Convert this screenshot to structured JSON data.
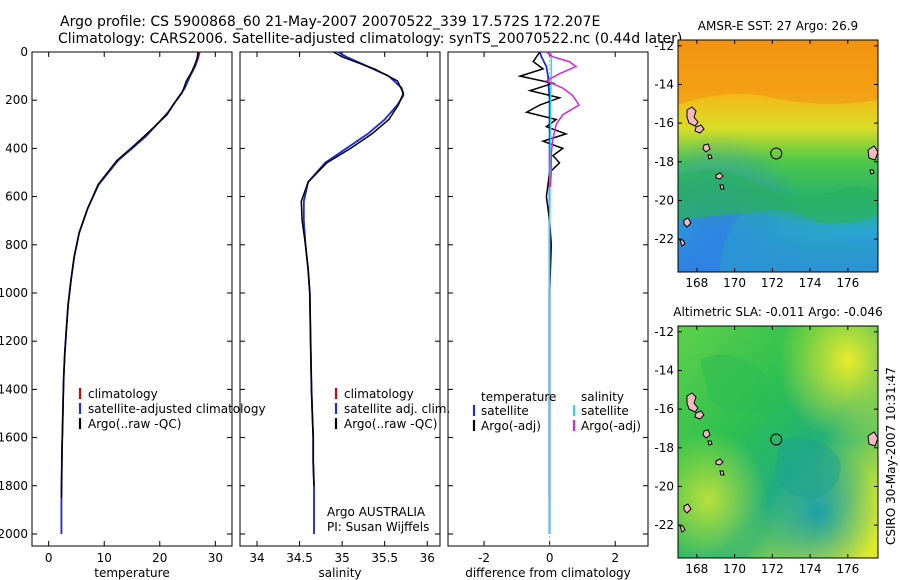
{
  "figure": {
    "title_line1": "Argo profile: CS 5900868_60 21-May-2007 20070522_339 17.572S 172.207E",
    "title_line2": "Climatology: CARS2006. Satellite-adjusted climatology: synTS_20070522.nc (0.44d later)",
    "credit": "CSIRO 30-May-2007 10:31:47"
  },
  "colors": {
    "climatology": "#dd0000",
    "satellite": "#1a2de8",
    "argo": "#000000",
    "sal_satellite": "#19e0ef",
    "sal_argo": "#e020e0"
  },
  "chart_data": [
    {
      "type": "line",
      "id": "temperature",
      "xlabel": "temperature",
      "ylabel": "",
      "xlim": [
        -3,
        33
      ],
      "ylim": [
        2050,
        0
      ],
      "xticks": [
        "0",
        "10",
        "20",
        "30"
      ],
      "yticks": [
        "0",
        "200",
        "400",
        "600",
        "800",
        "1000",
        "1200",
        "1400",
        "1600",
        "1800",
        "2000"
      ],
      "legend": [
        "climatology",
        "satellite-adjusted climatology",
        "Argo(..raw -QC)"
      ],
      "legend_position": "lower-center",
      "series": [
        {
          "name": "climatology",
          "color_key": "climatology",
          "x": [
            27.2,
            27.0,
            26.4,
            25.5,
            24.5,
            23.0,
            21.5,
            19.5,
            17.5,
            15.0,
            12.5,
            9.0,
            7.0,
            5.5,
            4.6,
            4.0,
            3.5,
            3.2,
            2.9,
            2.7,
            2.6,
            2.5,
            2.4,
            2.35,
            2.3,
            2.3
          ],
          "y": [
            0,
            20,
            60,
            100,
            150,
            200,
            250,
            300,
            350,
            400,
            450,
            550,
            650,
            750,
            850,
            950,
            1050,
            1150,
            1250,
            1350,
            1450,
            1550,
            1650,
            1750,
            1850,
            2000
          ]
        },
        {
          "name": "satellite-adjusted climatology",
          "color_key": "satellite",
          "x": [
            26.9,
            26.8,
            26.3,
            25.4,
            24.5,
            23.0,
            21.5,
            19.5,
            17.5,
            15.0,
            12.5,
            9.0,
            7.0,
            5.5,
            4.6,
            4.0,
            3.5,
            3.2,
            2.9,
            2.7,
            2.6,
            2.5,
            2.4,
            2.35,
            2.3,
            2.3
          ],
          "y": [
            0,
            20,
            60,
            100,
            150,
            200,
            250,
            300,
            350,
            400,
            450,
            550,
            650,
            750,
            850,
            950,
            1050,
            1150,
            1250,
            1350,
            1450,
            1550,
            1650,
            1750,
            1850,
            2000
          ]
        },
        {
          "name": "Argo(..raw -QC)",
          "color_key": "argo",
          "x": [
            26.9,
            26.7,
            25.8,
            24.8,
            24.0,
            22.7,
            21.3,
            19.5,
            17.2,
            14.8,
            12.3,
            8.9,
            7.0,
            5.5,
            4.6,
            4.0,
            3.5,
            3.2,
            2.9,
            2.7,
            2.6,
            2.5,
            2.4,
            2.35,
            2.3
          ],
          "y": [
            0,
            30,
            80,
            120,
            170,
            210,
            260,
            300,
            350,
            400,
            450,
            550,
            650,
            750,
            850,
            950,
            1050,
            1150,
            1250,
            1350,
            1450,
            1550,
            1650,
            1750,
            1850
          ]
        }
      ]
    },
    {
      "type": "line",
      "id": "salinity",
      "xlabel": "salinity",
      "ylabel": "",
      "xlim": [
        33.8,
        36.15
      ],
      "ylim": [
        2050,
        0
      ],
      "xticks": [
        "34",
        "34.5",
        "35",
        "35.5",
        "36"
      ],
      "legend": [
        "climatology",
        "satellite adj. clim.",
        "Argo(..raw -QC)"
      ],
      "legend_position": "lower-right",
      "annotation": [
        "Argo AUSTRALIA",
        "PI: Susan Wijffels"
      ],
      "series": [
        {
          "name": "climatology",
          "color_key": "climatology",
          "x": [
            34.95,
            35.05,
            35.3,
            35.55,
            35.7,
            35.72,
            35.65,
            35.5,
            35.3,
            35.05,
            34.8,
            34.6,
            34.55,
            34.55,
            34.57,
            34.6,
            34.62,
            34.63,
            34.64,
            34.65,
            34.66,
            34.66,
            34.67,
            34.67
          ],
          "y": [
            0,
            20,
            60,
            100,
            150,
            180,
            220,
            280,
            340,
            400,
            460,
            540,
            620,
            700,
            800,
            900,
            1000,
            1200,
            1400,
            1500,
            1600,
            1700,
            1800,
            2000
          ]
        },
        {
          "name": "satellite adj. clim.",
          "color_key": "satellite",
          "x": [
            34.95,
            35.05,
            35.3,
            35.55,
            35.7,
            35.72,
            35.65,
            35.5,
            35.3,
            35.05,
            34.8,
            34.6,
            34.55,
            34.55,
            34.57,
            34.6,
            34.62,
            34.63,
            34.64,
            34.65,
            34.66,
            34.66,
            34.67,
            34.67
          ],
          "y": [
            0,
            20,
            60,
            100,
            150,
            180,
            220,
            280,
            340,
            400,
            460,
            540,
            620,
            700,
            800,
            900,
            1000,
            1200,
            1400,
            1500,
            1600,
            1700,
            1800,
            2000
          ]
        },
        {
          "name": "Argo(..raw -QC)",
          "color_key": "argo",
          "x": [
            34.9,
            35.0,
            35.38,
            35.65,
            35.72,
            35.66,
            35.55,
            35.35,
            35.1,
            34.82,
            34.6,
            34.52,
            34.53,
            34.57,
            34.6,
            34.62,
            34.63,
            34.64,
            34.65,
            34.66,
            34.66,
            34.67
          ],
          "y": [
            0,
            20,
            70,
            120,
            170,
            220,
            280,
            340,
            400,
            460,
            540,
            620,
            700,
            800,
            900,
            1000,
            1200,
            1400,
            1500,
            1600,
            1700,
            1800
          ]
        }
      ]
    },
    {
      "type": "line",
      "id": "difference",
      "xlabel": "difference from climatology",
      "ylabel": "",
      "xlim": [
        -3.1,
        3.0
      ],
      "ylim": [
        2050,
        0
      ],
      "xticks": [
        "-2",
        "0",
        "2"
      ],
      "legend_left_title": "temperature",
      "legend_left": [
        "satellite",
        "Argo(-adj)"
      ],
      "legend_right_title": "salinity",
      "legend_right": [
        "satellite",
        "Argo(-adj)"
      ],
      "legend_position": "middle",
      "series": [
        {
          "name": "temperature satellite",
          "color_key": "satellite",
          "x": [
            -0.3,
            -0.25,
            -0.1,
            -0.05,
            0,
            0,
            0,
            0,
            0
          ],
          "y": [
            0,
            20,
            60,
            100,
            200,
            500,
            1000,
            1500,
            2000
          ]
        },
        {
          "name": "temperature Argo(-adj)",
          "color_key": "argo",
          "x": [
            -0.3,
            -0.5,
            -0.2,
            -0.9,
            0.1,
            -0.6,
            0.3,
            -0.3,
            -0.7,
            0.2,
            -0.1,
            0.5,
            -0.2,
            0.4,
            0.1,
            0.3,
            0.0,
            -0.1,
            0.0,
            0.05,
            0.0,
            0.0,
            0.0,
            0.0,
            0.0
          ],
          "y": [
            0,
            40,
            70,
            100,
            130,
            160,
            190,
            220,
            250,
            280,
            310,
            340,
            370,
            400,
            430,
            460,
            500,
            600,
            700,
            800,
            1000,
            1300,
            1600,
            1800,
            1850
          ]
        },
        {
          "name": "salinity satellite",
          "color_key": "sal_satellite",
          "x": [
            0.05,
            0.05,
            0.03,
            0.03,
            0.02,
            0.01,
            0,
            0,
            0
          ],
          "y": [
            0,
            100,
            200,
            300,
            400,
            500,
            800,
            1400,
            2000
          ]
        },
        {
          "name": "salinity Argo(-adj)",
          "color_key": "sal_argo",
          "x": [
            -0.1,
            0.1,
            0.6,
            0.8,
            0.3,
            -0.1,
            0.4,
            0.7,
            0.9,
            0.4,
            0.2,
            0.1,
            0.05,
            0.05,
            0.02
          ],
          "y": [
            0,
            20,
            40,
            60,
            90,
            120,
            150,
            180,
            220,
            260,
            300,
            360,
            420,
            500,
            560
          ]
        }
      ]
    },
    {
      "type": "heatmap",
      "id": "sst_map",
      "title": "AMSR-E SST: 27 Argo: 26.9",
      "xlim": [
        167,
        177.6
      ],
      "ylim": [
        -23.7,
        -11.7
      ],
      "xticks": [
        "168",
        "170",
        "172",
        "174",
        "176"
      ],
      "yticks": [
        "-12",
        "-14",
        "-16",
        "-18",
        "-20",
        "-22"
      ],
      "marker": {
        "lon": 172.207,
        "lat": -17.572
      }
    },
    {
      "type": "heatmap",
      "id": "sla_map",
      "title": "Altimetric SLA: -0.011 Argo: -0.046",
      "xlim": [
        167,
        177.6
      ],
      "ylim": [
        -23.7,
        -11.7
      ],
      "xticks": [
        "168",
        "170",
        "172",
        "174",
        "176"
      ],
      "yticks": [
        "-12",
        "-14",
        "-16",
        "-18",
        "-20",
        "-22"
      ],
      "marker": {
        "lon": 172.207,
        "lat": -17.572
      }
    }
  ]
}
